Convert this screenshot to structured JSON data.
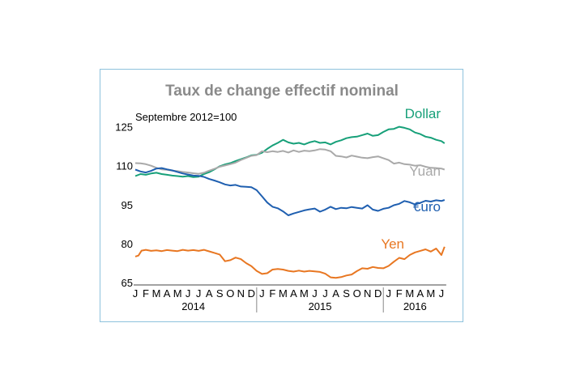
{
  "chart_data": {
    "type": "line",
    "title": "Taux de change effectif nominal",
    "subtitle": "Septembre 2012=100",
    "ylim": [
      65,
      128
    ],
    "yticks": [
      65,
      80,
      95,
      110,
      125
    ],
    "grid": false,
    "month_labels": [
      "J",
      "F",
      "M",
      "A",
      "M",
      "J",
      "J",
      "A",
      "S",
      "O",
      "N",
      "D",
      "J",
      "F",
      "M",
      "A",
      "M",
      "J",
      "J",
      "A",
      "S",
      "O",
      "N",
      "D",
      "J",
      "F",
      "M",
      "A",
      "M",
      "J"
    ],
    "year_labels": [
      "2014",
      "2015",
      "2016"
    ],
    "x_unit": "months since January 2014 (0 = Jan 2014)",
    "series": [
      {
        "name": "Dollar",
        "color": "#17a079",
        "points": [
          [
            0,
            106
          ],
          [
            0.5,
            106.8
          ],
          [
            1,
            106.5
          ],
          [
            1.5,
            107
          ],
          [
            2,
            107.3
          ],
          [
            2.5,
            106.8
          ],
          [
            3,
            106.5
          ],
          [
            3.5,
            106.2
          ],
          [
            4,
            106
          ],
          [
            4.5,
            105.8
          ],
          [
            5,
            106
          ],
          [
            5.5,
            105.6
          ],
          [
            6,
            105.8
          ],
          [
            6.5,
            106.8
          ],
          [
            7,
            107.5
          ],
          [
            7.5,
            108.6
          ],
          [
            8,
            109.8
          ],
          [
            8.5,
            110.5
          ],
          [
            9,
            111
          ],
          [
            9.5,
            111.8
          ],
          [
            10,
            112.5
          ],
          [
            10.5,
            113.2
          ],
          [
            11,
            114
          ],
          [
            11.5,
            114.2
          ],
          [
            12,
            115
          ],
          [
            12.5,
            116.5
          ],
          [
            13,
            117.8
          ],
          [
            13.5,
            118.8
          ],
          [
            14,
            120
          ],
          [
            14.5,
            119
          ],
          [
            15,
            118.5
          ],
          [
            15.5,
            118.8
          ],
          [
            16,
            118.2
          ],
          [
            16.5,
            119
          ],
          [
            17,
            119.5
          ],
          [
            17.5,
            118.8
          ],
          [
            18,
            119
          ],
          [
            18.5,
            118.2
          ],
          [
            19,
            119.2
          ],
          [
            19.5,
            119.8
          ],
          [
            20,
            120.6
          ],
          [
            20.5,
            121
          ],
          [
            21,
            121.2
          ],
          [
            21.5,
            121.8
          ],
          [
            22,
            122.4
          ],
          [
            22.5,
            121.5
          ],
          [
            23,
            121.8
          ],
          [
            23.5,
            123
          ],
          [
            24,
            124
          ],
          [
            24.5,
            124.2
          ],
          [
            25,
            125
          ],
          [
            25.5,
            124.6
          ],
          [
            26,
            124
          ],
          [
            26.5,
            122.8
          ],
          [
            27,
            122.2
          ],
          [
            27.5,
            121.2
          ],
          [
            28,
            120.8
          ],
          [
            28.5,
            120
          ],
          [
            29,
            119.5
          ],
          [
            29.3,
            118.6
          ]
        ],
        "label_text": "Dollar"
      },
      {
        "name": "Yuan",
        "color": "#a9a9a9",
        "points": [
          [
            0,
            111
          ],
          [
            0.5,
            110.9
          ],
          [
            1,
            110.6
          ],
          [
            1.5,
            110
          ],
          [
            2,
            109.2
          ],
          [
            2.5,
            108.6
          ],
          [
            3,
            108.4
          ],
          [
            3.5,
            108.1
          ],
          [
            4,
            107.9
          ],
          [
            4.5,
            107.6
          ],
          [
            5,
            107.4
          ],
          [
            5.5,
            107.1
          ],
          [
            6,
            106.9
          ],
          [
            6.5,
            107.3
          ],
          [
            7,
            108.1
          ],
          [
            7.5,
            108.8
          ],
          [
            8,
            109.6
          ],
          [
            8.5,
            110.1
          ],
          [
            9,
            110.6
          ],
          [
            9.5,
            111.2
          ],
          [
            10,
            112.2
          ],
          [
            10.5,
            113
          ],
          [
            11,
            113.8
          ],
          [
            11.5,
            114.1
          ],
          [
            12,
            115.6
          ],
          [
            12.5,
            115.2
          ],
          [
            13,
            115.6
          ],
          [
            13.5,
            115.3
          ],
          [
            14,
            115.7
          ],
          [
            14.5,
            115.1
          ],
          [
            15,
            115.9
          ],
          [
            15.5,
            115.3
          ],
          [
            16,
            115.8
          ],
          [
            16.5,
            115.6
          ],
          [
            17,
            115.9
          ],
          [
            17.5,
            116.4
          ],
          [
            18,
            116.2
          ],
          [
            18.5,
            115.6
          ],
          [
            19,
            113.8
          ],
          [
            19.5,
            113.6
          ],
          [
            20,
            113.2
          ],
          [
            20.5,
            113.9
          ],
          [
            21,
            113.5
          ],
          [
            21.5,
            113.1
          ],
          [
            22,
            112.9
          ],
          [
            22.5,
            113.3
          ],
          [
            23,
            113.6
          ],
          [
            23.5,
            112.9
          ],
          [
            24,
            112.2
          ],
          [
            24.5,
            110.8
          ],
          [
            25,
            111.2
          ],
          [
            25.5,
            110.6
          ],
          [
            26,
            110.4
          ],
          [
            26.5,
            110
          ],
          [
            27,
            110.2
          ],
          [
            27.5,
            109.6
          ],
          [
            28,
            109.2
          ],
          [
            28.5,
            109.1
          ],
          [
            29,
            108.9
          ],
          [
            29.3,
            108.5
          ]
        ],
        "label_text": "Yuan"
      },
      {
        "name": "Euro",
        "color": "#1f5fb0",
        "points": [
          [
            0,
            108.5
          ],
          [
            0.5,
            107.8
          ],
          [
            1,
            107.4
          ],
          [
            1.5,
            108
          ],
          [
            2,
            108.9
          ],
          [
            2.5,
            109.1
          ],
          [
            3,
            108.6
          ],
          [
            3.5,
            108.2
          ],
          [
            4,
            107.6
          ],
          [
            4.5,
            107
          ],
          [
            5,
            106.6
          ],
          [
            5.5,
            106.2
          ],
          [
            6,
            106.1
          ],
          [
            6.5,
            105.7
          ],
          [
            7,
            104.9
          ],
          [
            7.5,
            104.3
          ],
          [
            8,
            103.6
          ],
          [
            8.5,
            102.8
          ],
          [
            9,
            102.4
          ],
          [
            9.5,
            102.6
          ],
          [
            10,
            102
          ],
          [
            10.5,
            101.9
          ],
          [
            11,
            101.7
          ],
          [
            11.5,
            100.6
          ],
          [
            12,
            98.2
          ],
          [
            12.5,
            95.8
          ],
          [
            13,
            94.2
          ],
          [
            13.5,
            93.6
          ],
          [
            14,
            92.4
          ],
          [
            14.5,
            90.9
          ],
          [
            15,
            91.6
          ],
          [
            15.5,
            92.2
          ],
          [
            16,
            92.8
          ],
          [
            16.5,
            93.2
          ],
          [
            17,
            93.5
          ],
          [
            17.5,
            92.3
          ],
          [
            18,
            93.1
          ],
          [
            18.5,
            94.2
          ],
          [
            19,
            93.3
          ],
          [
            19.5,
            93.8
          ],
          [
            20,
            93.6
          ],
          [
            20.5,
            94.1
          ],
          [
            21,
            93.8
          ],
          [
            21.5,
            93.5
          ],
          [
            22,
            94.8
          ],
          [
            22.5,
            93.1
          ],
          [
            23,
            92.6
          ],
          [
            23.5,
            93.4
          ],
          [
            24,
            93.8
          ],
          [
            24.5,
            94.8
          ],
          [
            25,
            95.3
          ],
          [
            25.5,
            96.4
          ],
          [
            26,
            95.9
          ],
          [
            26.5,
            95.1
          ],
          [
            27,
            95.7
          ],
          [
            27.5,
            96.5
          ],
          [
            28,
            96.2
          ],
          [
            28.5,
            96.7
          ],
          [
            29,
            96.4
          ],
          [
            29.3,
            96.8
          ]
        ],
        "label_text": "€uro"
      },
      {
        "name": "Yen",
        "color": "#e87722",
        "points": [
          [
            0,
            75
          ],
          [
            0.3,
            75.4
          ],
          [
            0.6,
            77.3
          ],
          [
            1,
            77.6
          ],
          [
            1.5,
            77.2
          ],
          [
            2,
            77.4
          ],
          [
            2.5,
            77.1
          ],
          [
            3,
            77.5
          ],
          [
            3.5,
            77.3
          ],
          [
            4,
            77.1
          ],
          [
            4.5,
            77.6
          ],
          [
            5,
            77.3
          ],
          [
            5.5,
            77.5
          ],
          [
            6,
            77.2
          ],
          [
            6.5,
            77.6
          ],
          [
            7,
            77
          ],
          [
            7.5,
            76.4
          ],
          [
            8,
            75.8
          ],
          [
            8.5,
            73.2
          ],
          [
            9,
            73.6
          ],
          [
            9.5,
            74.6
          ],
          [
            10,
            74
          ],
          [
            10.5,
            72.5
          ],
          [
            11,
            71.3
          ],
          [
            11.5,
            69.5
          ],
          [
            12,
            68.3
          ],
          [
            12.5,
            68.6
          ],
          [
            13,
            70
          ],
          [
            13.5,
            70.2
          ],
          [
            14,
            70
          ],
          [
            14.5,
            69.5
          ],
          [
            15,
            69.2
          ],
          [
            15.5,
            69.6
          ],
          [
            16,
            69.2
          ],
          [
            16.5,
            69.5
          ],
          [
            17,
            69.3
          ],
          [
            17.5,
            69.1
          ],
          [
            18,
            68.4
          ],
          [
            18.5,
            67
          ],
          [
            19,
            66.8
          ],
          [
            19.5,
            67.1
          ],
          [
            20,
            67.7
          ],
          [
            20.5,
            68.1
          ],
          [
            21,
            69.4
          ],
          [
            21.5,
            70.5
          ],
          [
            22,
            70.3
          ],
          [
            22.5,
            71
          ],
          [
            23,
            70.6
          ],
          [
            23.5,
            70.5
          ],
          [
            24,
            71.4
          ],
          [
            24.5,
            73
          ],
          [
            25,
            74.5
          ],
          [
            25.5,
            74
          ],
          [
            26,
            75.6
          ],
          [
            26.5,
            76.6
          ],
          [
            27,
            77.2
          ],
          [
            27.5,
            77.8
          ],
          [
            28,
            76.9
          ],
          [
            28.5,
            78.1
          ],
          [
            29,
            75.6
          ],
          [
            29.3,
            78.8
          ]
        ],
        "label_text": "Yen"
      }
    ]
  }
}
